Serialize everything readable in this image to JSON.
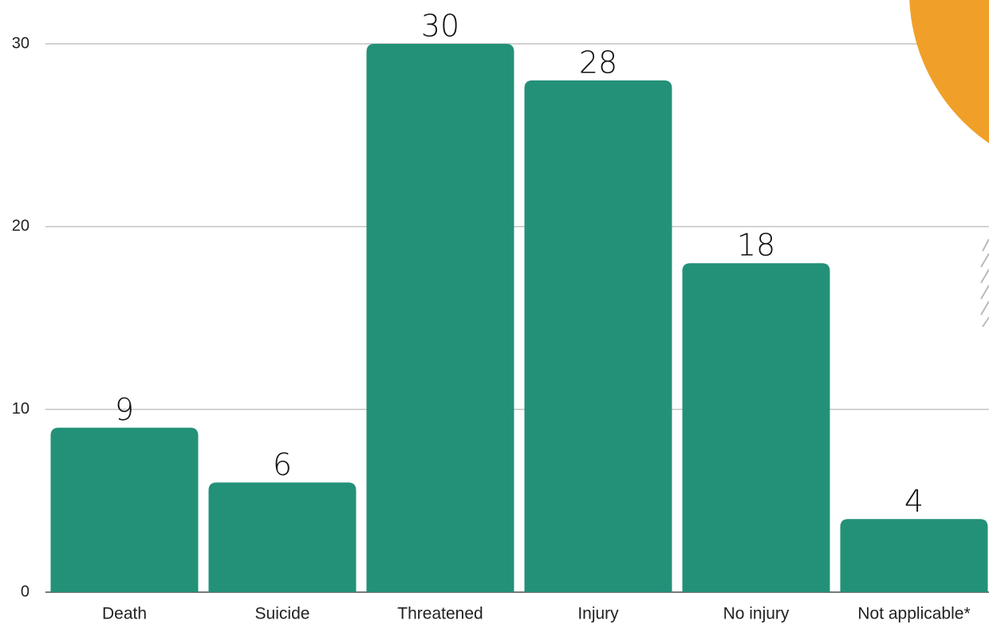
{
  "chart_data": {
    "type": "bar",
    "categories": [
      "Death",
      "Suicide",
      "Threatened",
      "Injury",
      "No injury",
      "Not applicable*"
    ],
    "values": [
      9,
      6,
      30,
      28,
      18,
      4
    ],
    "color": "#239178",
    "ylim": [
      0,
      30
    ],
    "yticks": [
      0,
      10,
      20,
      30
    ],
    "grid": true
  }
}
